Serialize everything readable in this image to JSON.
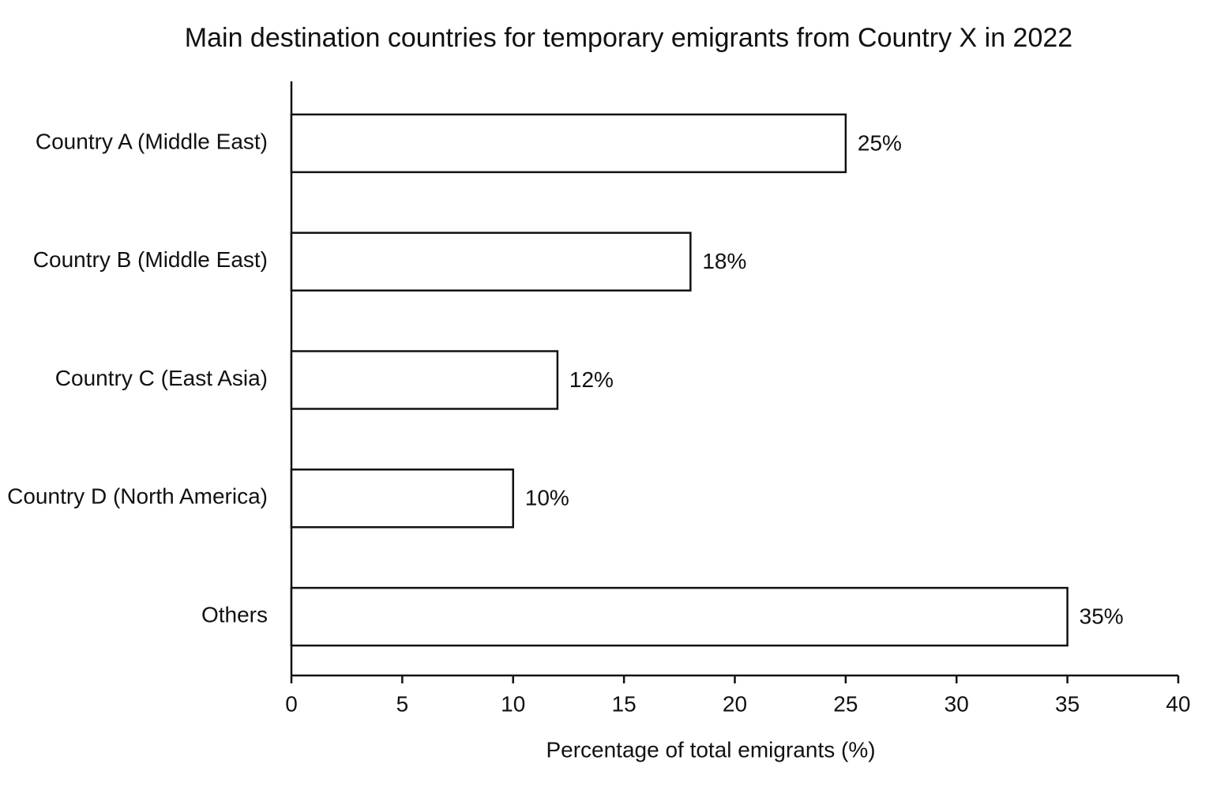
{
  "chart_data": {
    "type": "hbar",
    "title": "Main destination countries for temporary emigrants from Country X in 2022",
    "x_label": "Percentage of total emigrants (%)",
    "categories": [
      "Country A (Middle East)",
      "Country B (Middle East)",
      "Country C (East Asia)",
      "Country D (North America)",
      "Others"
    ],
    "values": [
      25,
      18,
      12,
      10,
      35
    ],
    "value_labels": [
      "25%",
      "18%",
      "12%",
      "10%",
      "35%"
    ],
    "color": "#ffffff",
    "xlim": [
      0,
      40
    ],
    "xticks": [
      0,
      5,
      10,
      15,
      20,
      25,
      30,
      35,
      40
    ],
    "grid": false
  }
}
